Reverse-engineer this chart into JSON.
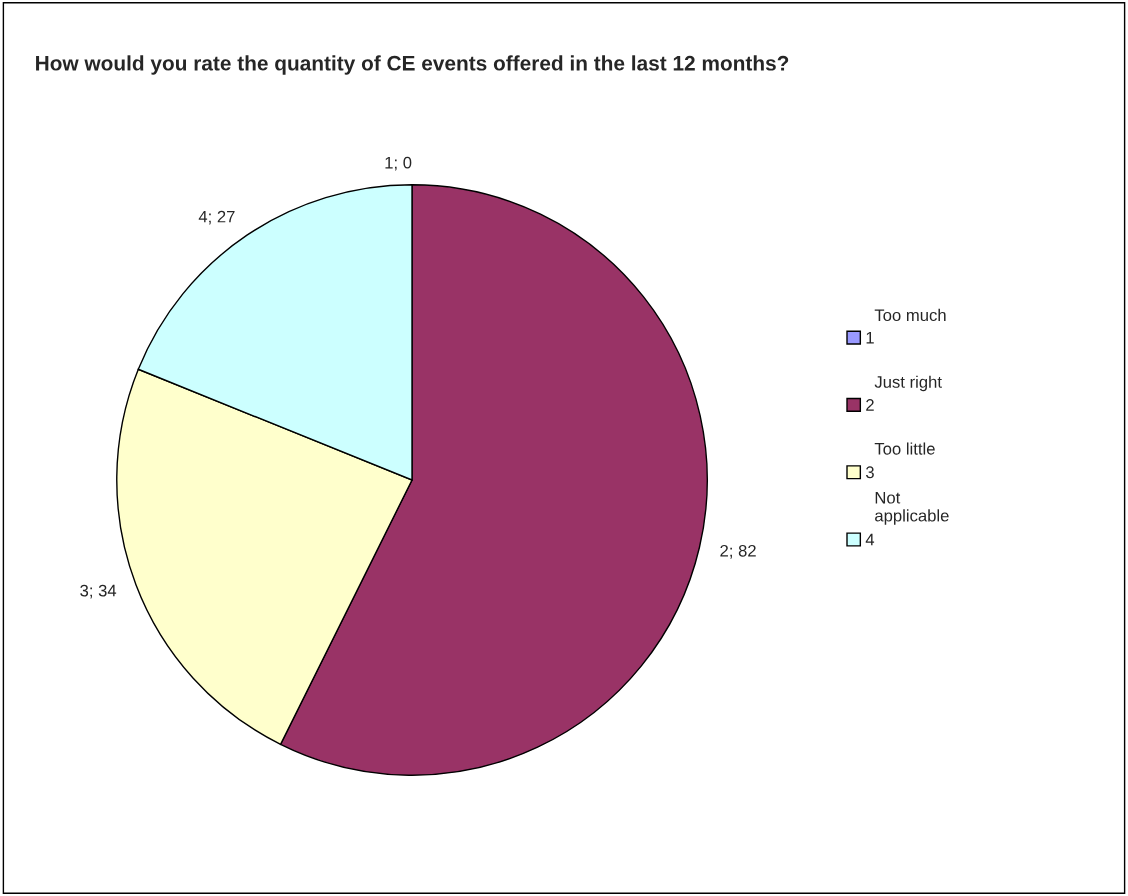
{
  "chart_data": {
    "type": "pie",
    "title": "How would you rate the quantity of CE events offered in the last 12 months?",
    "categories": [
      "1",
      "2",
      "3",
      "4"
    ],
    "values": [
      0,
      82,
      34,
      27
    ],
    "colors": [
      "#9999ff",
      "#993366",
      "#ffffcc",
      "#ccffff"
    ],
    "value_labels": [
      "1; 0",
      "2; 82",
      "3; 34",
      "4; 27"
    ],
    "annotations": [
      "Too much",
      "Just right",
      "Too little",
      "Not\napplicable"
    ],
    "legend": "right"
  }
}
